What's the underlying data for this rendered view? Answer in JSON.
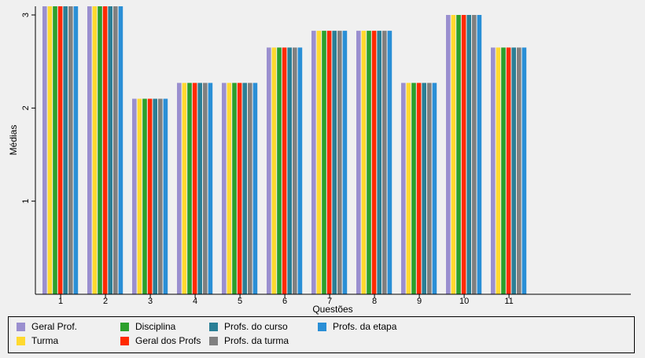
{
  "chart_data": {
    "type": "bar",
    "title": "",
    "xlabel": "Questões",
    "ylabel": "Médias",
    "ylim": [
      0,
      3.1
    ],
    "yticks": [
      1,
      2,
      3
    ],
    "grid": false,
    "legend_position": "bottom",
    "categories": [
      "1",
      "2",
      "3",
      "4",
      "5",
      "6",
      "7",
      "8",
      "9",
      "10",
      "11"
    ],
    "series": [
      {
        "name": "Geral Prof.",
        "color": "#9a8fcf",
        "values": [
          3.3,
          3.3,
          2.1,
          2.27,
          2.27,
          2.65,
          2.83,
          2.83,
          2.27,
          3.0,
          2.65
        ]
      },
      {
        "name": "Turma",
        "color": "#ffd92f",
        "values": [
          3.3,
          3.3,
          2.1,
          2.27,
          2.27,
          2.65,
          2.83,
          2.83,
          2.27,
          3.0,
          2.65
        ]
      },
      {
        "name": "Disciplina",
        "color": "#2ca02c",
        "values": [
          3.3,
          3.3,
          2.1,
          2.27,
          2.27,
          2.65,
          2.83,
          2.83,
          2.27,
          3.0,
          2.65
        ]
      },
      {
        "name": "Geral dos Profs",
        "color": "#ff2a00",
        "values": [
          3.3,
          3.3,
          2.1,
          2.27,
          2.27,
          2.65,
          2.83,
          2.83,
          2.27,
          3.0,
          2.65
        ]
      },
      {
        "name": "Profs. do curso",
        "color": "#2a7f96",
        "values": [
          3.3,
          3.3,
          2.1,
          2.27,
          2.27,
          2.65,
          2.83,
          2.83,
          2.27,
          3.0,
          2.65
        ]
      },
      {
        "name": "Profs. da turma",
        "color": "#808080",
        "values": [
          3.3,
          3.3,
          2.1,
          2.27,
          2.27,
          2.65,
          2.83,
          2.83,
          2.27,
          3.0,
          2.65
        ]
      },
      {
        "name": "Profs. da etapa",
        "color": "#2a8fd6",
        "values": [
          3.3,
          3.3,
          2.1,
          2.27,
          2.27,
          2.65,
          2.83,
          2.83,
          2.27,
          3.0,
          2.65
        ]
      }
    ]
  }
}
